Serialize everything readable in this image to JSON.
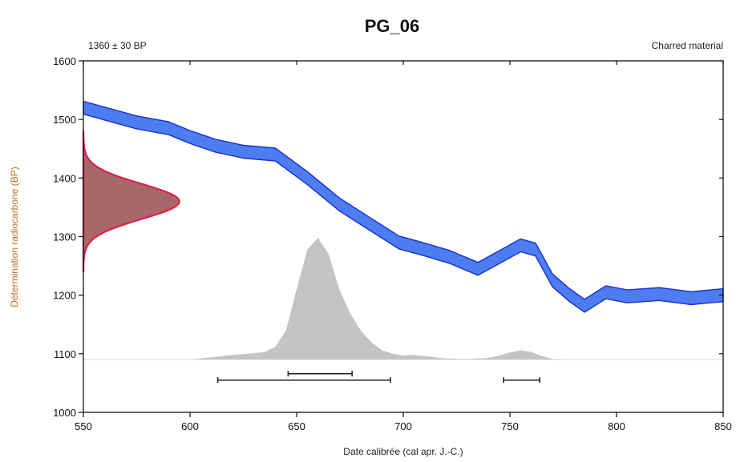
{
  "chart_data": {
    "type": "area",
    "title": "PG_06",
    "subtitle_left": "1360 ± 30 BP",
    "subtitle_right": "Charred material",
    "xlabel": "Date calibrée (cal apr. J.-C.)",
    "ylabel": "Détermination radiocarbone (BP)",
    "xlim": [
      550,
      850
    ],
    "ylim": [
      1000,
      1600
    ],
    "x_ticks": [
      550,
      600,
      650,
      700,
      750,
      800,
      850
    ],
    "y_ticks": [
      1000,
      1100,
      1200,
      1300,
      1400,
      1500,
      1600
    ],
    "grid": false,
    "colors": {
      "calibration_band": "#4d7df0",
      "calibration_edge": "#1a2fd0",
      "radiocarbon_fill": "#a86868",
      "radiocarbon_edge": "#e0204a",
      "posterior_fill": "#c4c4c4",
      "baseline": "#d8d8d8",
      "range_bar": "#222222",
      "ylabel_color": "#c07020"
    },
    "calibration_curve": {
      "x": [
        550,
        560,
        575,
        590,
        600,
        612,
        625,
        640,
        655,
        670,
        685,
        698,
        710,
        722,
        735,
        745,
        755,
        762,
        770,
        778,
        785,
        795,
        805,
        820,
        835,
        850
      ],
      "y": [
        1520,
        1510,
        1495,
        1485,
        1470,
        1455,
        1445,
        1440,
        1400,
        1355,
        1320,
        1290,
        1278,
        1265,
        1245,
        1265,
        1285,
        1278,
        1225,
        1200,
        1182,
        1205,
        1198,
        1202,
        1195,
        1200
      ],
      "half_width": 11
    },
    "radiocarbon_distribution": {
      "mean": 1360,
      "sd": 30,
      "peak_x": 595
    },
    "posterior_distribution": {
      "x": [
        600,
        610,
        620,
        630,
        635,
        640,
        645,
        650,
        655,
        660,
        665,
        670,
        675,
        680,
        685,
        690,
        695,
        700,
        705,
        710,
        720,
        730,
        740,
        745,
        750,
        755,
        760,
        765,
        770,
        780,
        800,
        850
      ],
      "y": [
        1090,
        1094,
        1098,
        1101,
        1103,
        1112,
        1140,
        1210,
        1278,
        1298,
        1270,
        1210,
        1170,
        1140,
        1120,
        1106,
        1100,
        1097,
        1098,
        1096,
        1092,
        1091,
        1093,
        1097,
        1102,
        1106,
        1103,
        1096,
        1091,
        1090,
        1090,
        1090
      ],
      "baseline": 1090
    },
    "ranges": [
      {
        "from": 613,
        "to": 694,
        "y": 1055
      },
      {
        "from": 646,
        "to": 676,
        "y": 1066
      },
      {
        "from": 747,
        "to": 764,
        "y": 1055
      }
    ]
  }
}
